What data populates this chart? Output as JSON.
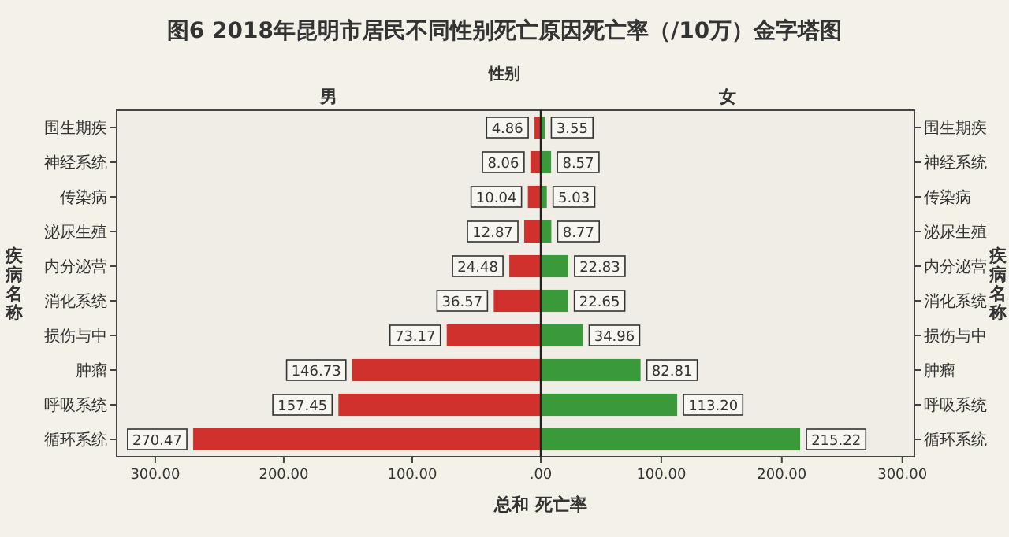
{
  "chart_data": [
    {
      "type": "bar",
      "orientation": "horizontal",
      "title": "图6  2018年昆明市居民不同性别死亡原因死亡率（/10万）金字塔图",
      "subtitle": "性别",
      "annotations": [
        "男"
      ],
      "xlabel": "总和 死亡率",
      "ylabel": "疾病名称",
      "categories": [
        "围生期疾",
        "神经系统",
        "传染病",
        "泌尿生殖",
        "内分泌营",
        "消化系统",
        "损伤与中",
        "肿瘤",
        "呼吸系统",
        "循环系统"
      ],
      "series": [
        {
          "color": "#d0312d",
          "values": [
            4.86,
            8.06,
            10.04,
            12.87,
            24.48,
            36.57,
            73.17,
            146.73,
            157.45,
            270.47
          ],
          "value_labels": [
            "4.86",
            "8.06",
            "10.04",
            "12.87",
            "24.48",
            "36.57",
            "73.17",
            "146.73",
            "157.45",
            "270.47"
          ]
        }
      ],
      "xlim": [
        330,
        0
      ],
      "xticks": [
        {
          "value": 300,
          "label": "300.00"
        },
        {
          "value": 200,
          "label": "200.00"
        },
        {
          "value": 100,
          "label": "100.00"
        },
        {
          "value": 0,
          "label": ".00"
        }
      ],
      "grid": false
    },
    {
      "type": "bar",
      "orientation": "horizontal",
      "annotations": [
        "女"
      ],
      "ylabel": "疾病名称",
      "categories": [
        "围生期疾",
        "神经系统",
        "传染病",
        "泌尿生殖",
        "内分泌营",
        "消化系统",
        "损伤与中",
        "肿瘤",
        "呼吸系统",
        "循环系统"
      ],
      "series": [
        {
          "color": "#3a9a3a",
          "values": [
            3.55,
            8.57,
            5.03,
            8.77,
            22.83,
            22.65,
            34.96,
            82.81,
            113.2,
            215.22
          ],
          "value_labels": [
            "3.55",
            "8.57",
            "5.03",
            "8.77",
            "22.83",
            "22.65",
            "34.96",
            "82.81",
            "113.20",
            "215.22"
          ]
        }
      ],
      "xlim": [
        0,
        310
      ],
      "xticks": [
        {
          "value": 100,
          "label": "100.00"
        },
        {
          "value": 200,
          "label": "200.00"
        },
        {
          "value": 300,
          "label": "300.00"
        }
      ],
      "grid": false
    }
  ]
}
